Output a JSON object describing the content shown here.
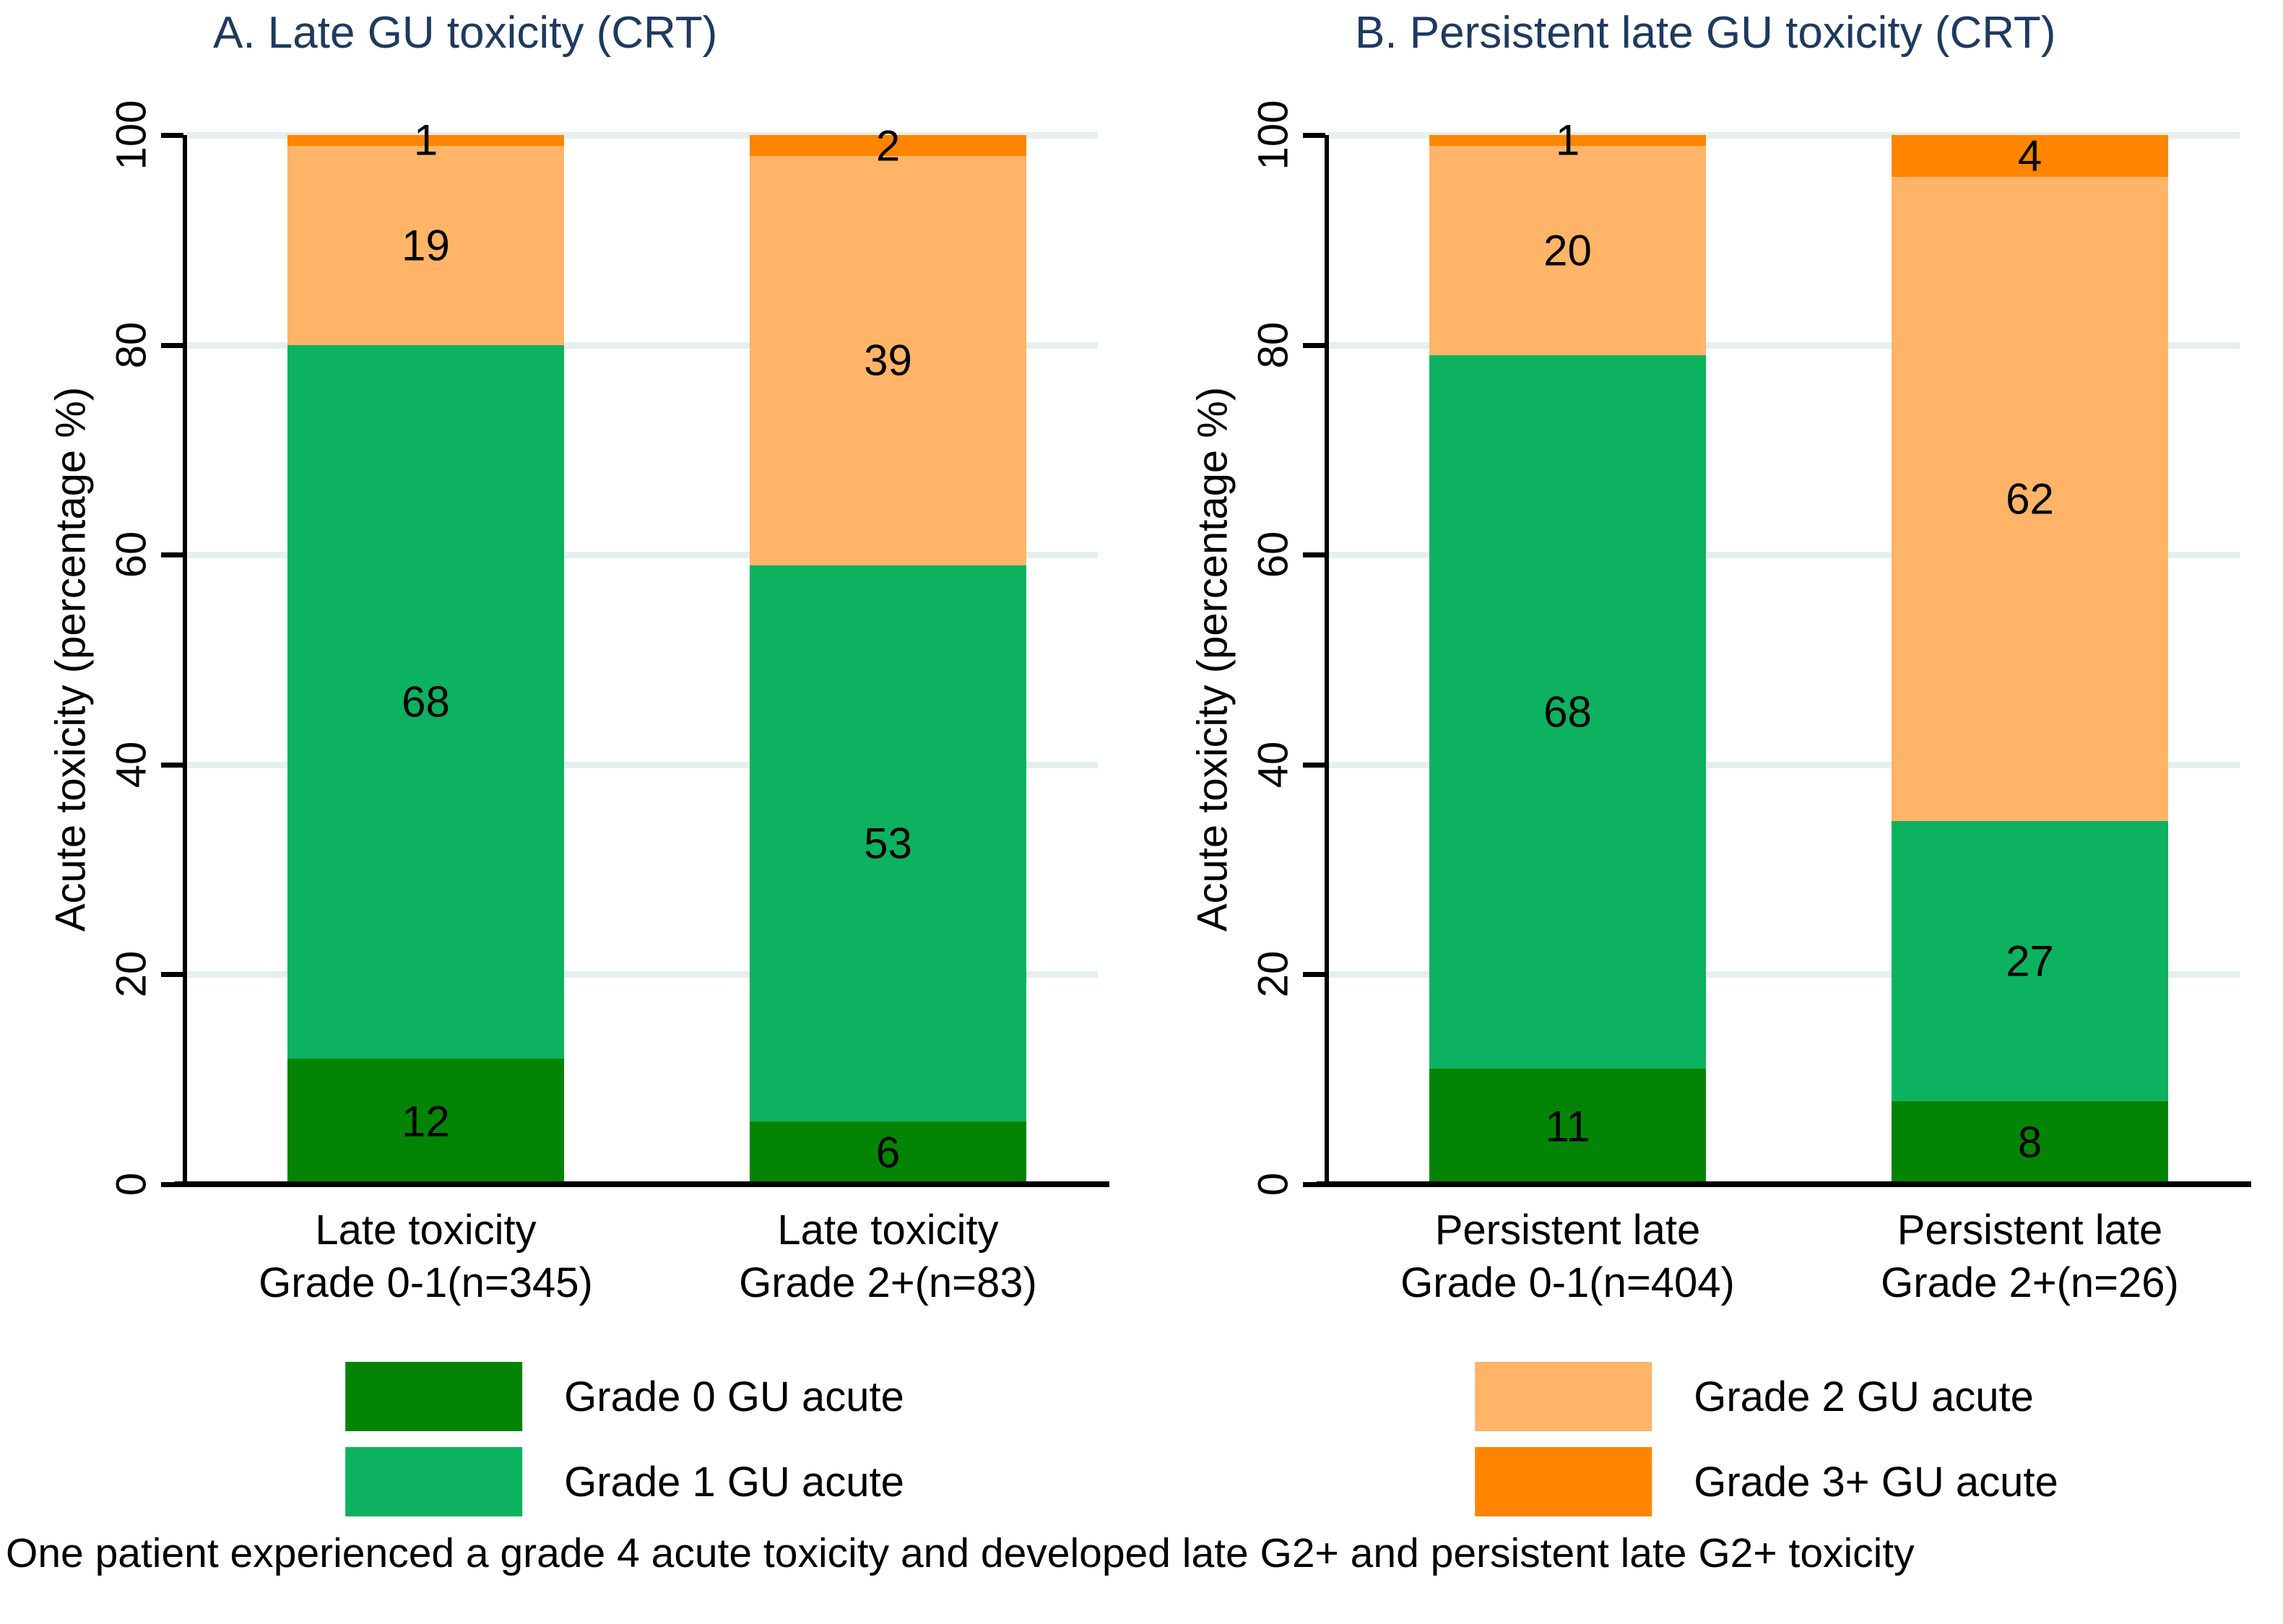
{
  "figure_footnote": "One patient experienced a grade 4 acute toxicity and developed late G2+ and persistent late G2+ toxicity",
  "colors": {
    "grade0": "#048404",
    "grade1": "#0cb25f",
    "grade2": "#ffb467",
    "grade3": "#ff8400",
    "title_text": "#1e3a5f",
    "gridline": "#e3f0ed",
    "axis": "#000000",
    "label_text": "#000000"
  },
  "chart_data": [
    {
      "type": "bar",
      "stacked": true,
      "title": "A. Late GU toxicity (CRT)",
      "ylabel": "Acute toxicity (percentage %)",
      "xlabel": "",
      "ylim": [
        0,
        100
      ],
      "yticks": [
        0,
        20,
        40,
        60,
        80,
        100
      ],
      "grid": true,
      "legend_position": "bottom",
      "categories": [
        [
          "Late toxicity",
          "Grade 0-1(n=345)"
        ],
        [
          "Late toxicity",
          "Grade 2+(n=83)"
        ]
      ],
      "series": [
        {
          "name": "Grade 0 GU acute",
          "color_key": "grade0",
          "values": [
            12,
            6
          ]
        },
        {
          "name": "Grade 1 GU acute",
          "color_key": "grade1",
          "values": [
            68,
            53
          ]
        },
        {
          "name": "Grade 2 GU acute",
          "color_key": "grade2",
          "values": [
            19,
            39
          ]
        },
        {
          "name": "Grade 3+ GU acute",
          "color_key": "grade3",
          "values": [
            1,
            2
          ]
        }
      ],
      "legend": [
        {
          "label": "Grade 0 GU acute",
          "color_key": "grade0"
        },
        {
          "label": "Grade 1 GU acute",
          "color_key": "grade1"
        }
      ]
    },
    {
      "type": "bar",
      "stacked": true,
      "title": "B. Persistent late GU toxicity (CRT)",
      "ylabel": "Acute toxicity (percentage %)",
      "xlabel": "",
      "ylim": [
        0,
        100
      ],
      "yticks": [
        0,
        20,
        40,
        60,
        80,
        100
      ],
      "grid": true,
      "legend_position": "bottom",
      "categories": [
        [
          "Persistent late",
          "Grade 0-1(n=404)"
        ],
        [
          "Persistent late",
          "Grade 2+(n=26)"
        ]
      ],
      "series": [
        {
          "name": "Grade 0 GU acute",
          "color_key": "grade0",
          "values": [
            11,
            8
          ]
        },
        {
          "name": "Grade 1 GU acute",
          "color_key": "grade1",
          "values": [
            68,
            27
          ]
        },
        {
          "name": "Grade 2 GU acute",
          "color_key": "grade2",
          "values": [
            20,
            62
          ]
        },
        {
          "name": "Grade 3+ GU acute",
          "color_key": "grade3",
          "values": [
            1,
            4
          ]
        }
      ],
      "legend": [
        {
          "label": "Grade 2 GU acute",
          "color_key": "grade2"
        },
        {
          "label": "Grade 3+ GU acute",
          "color_key": "grade3"
        }
      ]
    }
  ]
}
